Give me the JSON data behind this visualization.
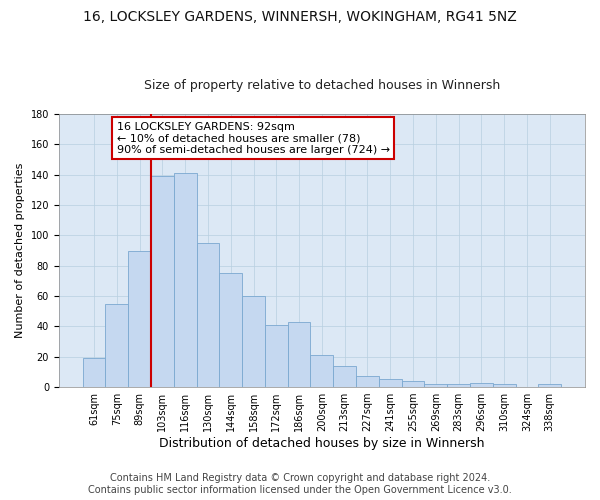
{
  "title": "16, LOCKSLEY GARDENS, WINNERSH, WOKINGHAM, RG41 5NZ",
  "subtitle": "Size of property relative to detached houses in Winnersh",
  "xlabel": "Distribution of detached houses by size in Winnersh",
  "ylabel": "Number of detached properties",
  "categories": [
    "61sqm",
    "75sqm",
    "89sqm",
    "103sqm",
    "116sqm",
    "130sqm",
    "144sqm",
    "158sqm",
    "172sqm",
    "186sqm",
    "200sqm",
    "213sqm",
    "227sqm",
    "241sqm",
    "255sqm",
    "269sqm",
    "283sqm",
    "296sqm",
    "310sqm",
    "324sqm",
    "338sqm"
  ],
  "values": [
    19,
    55,
    90,
    139,
    141,
    95,
    75,
    60,
    41,
    43,
    21,
    14,
    7,
    5,
    4,
    2,
    2,
    3,
    2,
    0,
    2
  ],
  "bar_color": "#c5d8f0",
  "bar_edge_color": "#7aa8d0",
  "vline_index": 2,
  "vline_color": "#cc0000",
  "annotation_line1": "16 LOCKSLEY GARDENS: 92sqm",
  "annotation_line2": "← 10% of detached houses are smaller (78)",
  "annotation_line3": "90% of semi-detached houses are larger (724) →",
  "annotation_box_color": "#ffffff",
  "annotation_box_edge": "#cc0000",
  "footer": "Contains HM Land Registry data © Crown copyright and database right 2024.\nContains public sector information licensed under the Open Government Licence v3.0.",
  "ylim": [
    0,
    180
  ],
  "yticks": [
    0,
    20,
    40,
    60,
    80,
    100,
    120,
    140,
    160,
    180
  ],
  "bg_color": "#ffffff",
  "ax_bg_color": "#dce8f5",
  "grid_color": "#b8cfe0",
  "title_fontsize": 10,
  "subtitle_fontsize": 9,
  "xlabel_fontsize": 9,
  "ylabel_fontsize": 8,
  "footer_fontsize": 7,
  "tick_fontsize": 7,
  "annot_fontsize": 8,
  "bar_width": 1.0
}
